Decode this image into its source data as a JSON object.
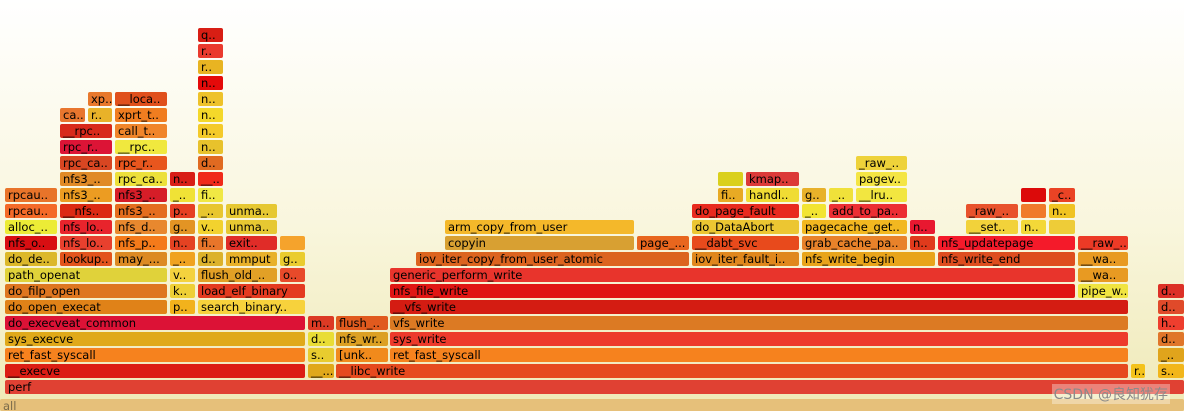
{
  "watermark": "CSDN @良知犹存",
  "chart_data": {
    "type": "flame_graph",
    "frames": [
      {
        "label": "all",
        "depth": 0,
        "start": 0,
        "end": 1184,
        "color": "#e6c07a"
      },
      {
        "label": "perf",
        "depth": 1,
        "start": 5,
        "end": 1184,
        "color": "#e04133"
      },
      {
        "label": "__execve",
        "depth": 2,
        "start": 5,
        "end": 305,
        "color": "#dc1d14"
      },
      {
        "label": "__...",
        "depth": 2,
        "start": 308,
        "end": 334,
        "color": "#e0a81a"
      },
      {
        "label": "__libc_write",
        "depth": 2,
        "start": 336,
        "end": 1128,
        "color": "#e64a1e"
      },
      {
        "label": "r..",
        "depth": 2,
        "start": 1131,
        "end": 1145,
        "color": "#f4c21a"
      },
      {
        "label": "s..",
        "depth": 2,
        "start": 1158,
        "end": 1184,
        "color": "#f2b61b"
      },
      {
        "label": "ret_fast_syscall",
        "depth": 3,
        "start": 5,
        "end": 305,
        "color": "#f6821e"
      },
      {
        "label": "s..",
        "depth": 3,
        "start": 308,
        "end": 334,
        "color": "#e8cc2f"
      },
      {
        "label": "[unk..",
        "depth": 3,
        "start": 336,
        "end": 388,
        "color": "#f18a1c"
      },
      {
        "label": "ret_fast_syscall",
        "depth": 3,
        "start": 390,
        "end": 1128,
        "color": "#f6821e"
      },
      {
        "label": "_..",
        "depth": 3,
        "start": 1158,
        "end": 1184,
        "color": "#e0a41c"
      },
      {
        "label": "sys_execve",
        "depth": 4,
        "start": 5,
        "end": 305,
        "color": "#e0a919"
      },
      {
        "label": "d..",
        "depth": 4,
        "start": 308,
        "end": 334,
        "color": "#e9dd35"
      },
      {
        "label": "nfs_wr..",
        "depth": 4,
        "start": 336,
        "end": 388,
        "color": "#dca023"
      },
      {
        "label": "sys_write",
        "depth": 4,
        "start": 390,
        "end": 1128,
        "color": "#ed3a2b"
      },
      {
        "label": "d..",
        "depth": 4,
        "start": 1158,
        "end": 1184,
        "color": "#e0762a"
      },
      {
        "label": "do_execveat_common",
        "depth": 5,
        "start": 5,
        "end": 305,
        "color": "#dc1236"
      },
      {
        "label": "m..",
        "depth": 5,
        "start": 308,
        "end": 334,
        "color": "#dc3a24"
      },
      {
        "label": "flush_..",
        "depth": 5,
        "start": 336,
        "end": 388,
        "color": "#e05a1e"
      },
      {
        "label": "vfs_write",
        "depth": 5,
        "start": 390,
        "end": 1128,
        "color": "#dc7a23"
      },
      {
        "label": "h..",
        "depth": 5,
        "start": 1158,
        "end": 1184,
        "color": "#ee3e2e"
      },
      {
        "label": "do_open_execat",
        "depth": 6,
        "start": 5,
        "end": 167,
        "color": "#e08218"
      },
      {
        "label": "p..",
        "depth": 6,
        "start": 170,
        "end": 195,
        "color": "#f2b21c"
      },
      {
        "label": "search_binary..",
        "depth": 6,
        "start": 198,
        "end": 305,
        "color": "#f7d23c"
      },
      {
        "label": "__vfs_write",
        "depth": 6,
        "start": 390,
        "end": 1128,
        "color": "#d41c12"
      },
      {
        "label": "d..",
        "depth": 6,
        "start": 1158,
        "end": 1184,
        "color": "#e04a2a"
      },
      {
        "label": "do_filp_open",
        "depth": 7,
        "start": 5,
        "end": 167,
        "color": "#de7620"
      },
      {
        "label": "k..",
        "depth": 7,
        "start": 170,
        "end": 195,
        "color": "#eecf36"
      },
      {
        "label": "load_elf_binary",
        "depth": 7,
        "start": 198,
        "end": 305,
        "color": "#e43a20"
      },
      {
        "label": "nfs_file_write",
        "depth": 7,
        "start": 390,
        "end": 1075,
        "color": "#e01613"
      },
      {
        "label": "pipe_w..",
        "depth": 7,
        "start": 1078,
        "end": 1128,
        "color": "#f0e440"
      },
      {
        "label": "d..",
        "depth": 7,
        "start": 1158,
        "end": 1184,
        "color": "#dc3026"
      },
      {
        "label": "path_openat",
        "depth": 8,
        "start": 5,
        "end": 167,
        "color": "#e0d23a"
      },
      {
        "label": "v..",
        "depth": 8,
        "start": 170,
        "end": 195,
        "color": "#f4d23e"
      },
      {
        "label": "flush_old_..",
        "depth": 8,
        "start": 198,
        "end": 277,
        "color": "#e2a026"
      },
      {
        "label": "o..",
        "depth": 8,
        "start": 280,
        "end": 305,
        "color": "#e84a2a"
      },
      {
        "label": "generic_perform_write",
        "depth": 8,
        "start": 390,
        "end": 1075,
        "color": "#e8342c"
      },
      {
        "label": "__wa..",
        "depth": 8,
        "start": 1078,
        "end": 1128,
        "color": "#e89a22"
      },
      {
        "label": "do_de..",
        "depth": 9,
        "start": 5,
        "end": 57,
        "color": "#dcb82a"
      },
      {
        "label": "lookup..",
        "depth": 9,
        "start": 60,
        "end": 112,
        "color": "#e3541c"
      },
      {
        "label": "may_...",
        "depth": 9,
        "start": 115,
        "end": 167,
        "color": "#dc8a23"
      },
      {
        "label": "_..",
        "depth": 9,
        "start": 170,
        "end": 195,
        "color": "#f0a220"
      },
      {
        "label": "d..",
        "depth": 9,
        "start": 198,
        "end": 223,
        "color": "#dcb22b"
      },
      {
        "label": "mmput",
        "depth": 9,
        "start": 226,
        "end": 277,
        "color": "#e8b12a"
      },
      {
        "label": "g..",
        "depth": 9,
        "start": 280,
        "end": 305,
        "color": "#eacc2f"
      },
      {
        "label": "iov_iter_copy_from_user_atomic",
        "depth": 9,
        "start": 416,
        "end": 689,
        "color": "#dc641f"
      },
      {
        "label": "iov_iter_fault_i..",
        "depth": 9,
        "start": 692,
        "end": 799,
        "color": "#e0871d"
      },
      {
        "label": "nfs_write_begin",
        "depth": 9,
        "start": 802,
        "end": 935,
        "color": "#e8a41a"
      },
      {
        "label": "nfs_write_end",
        "depth": 9,
        "start": 938,
        "end": 1075,
        "color": "#de4d1e"
      },
      {
        "label": "__wa..",
        "depth": 9,
        "start": 1078,
        "end": 1128,
        "color": "#e89a22"
      },
      {
        "label": "nfs_o..",
        "depth": 10,
        "start": 5,
        "end": 57,
        "color": "#d80e12"
      },
      {
        "label": "nfs_lo..",
        "depth": 10,
        "start": 60,
        "end": 112,
        "color": "#e8402e"
      },
      {
        "label": "nfs_p..",
        "depth": 10,
        "start": 115,
        "end": 167,
        "color": "#f47a1a"
      },
      {
        "label": "n..",
        "depth": 10,
        "start": 170,
        "end": 195,
        "color": "#e44222"
      },
      {
        "label": "fi..",
        "depth": 10,
        "start": 198,
        "end": 223,
        "color": "#e8752a"
      },
      {
        "label": "exit..",
        "depth": 10,
        "start": 226,
        "end": 277,
        "color": "#e02c28"
      },
      {
        "label": "",
        "depth": 10,
        "start": 280,
        "end": 305,
        "color": "#f5a32c"
      },
      {
        "label": "copyin",
        "depth": 10,
        "start": 445,
        "end": 634,
        "color": "#d8a032"
      },
      {
        "label": "page_...",
        "depth": 10,
        "start": 637,
        "end": 689,
        "color": "#e8661e"
      },
      {
        "label": "__dabt_svc",
        "depth": 10,
        "start": 692,
        "end": 799,
        "color": "#e84a1c"
      },
      {
        "label": "grab_cache_pa..",
        "depth": 10,
        "start": 802,
        "end": 907,
        "color": "#e8822a"
      },
      {
        "label": "n..",
        "depth": 10,
        "start": 910,
        "end": 935,
        "color": "#e03a1c"
      },
      {
        "label": "nfs_updatepage",
        "depth": 10,
        "start": 938,
        "end": 1075,
        "color": "#f41a2a"
      },
      {
        "label": "__raw_..",
        "depth": 10,
        "start": 1078,
        "end": 1128,
        "color": "#ec3a26"
      },
      {
        "label": "alloc_..",
        "depth": 11,
        "start": 5,
        "end": 57,
        "color": "#ecec36"
      },
      {
        "label": "nfs_lo..",
        "depth": 11,
        "start": 60,
        "end": 112,
        "color": "#e8242c"
      },
      {
        "label": "nfs_d..",
        "depth": 11,
        "start": 115,
        "end": 167,
        "color": "#e8882e"
      },
      {
        "label": "g..",
        "depth": 11,
        "start": 170,
        "end": 195,
        "color": "#e39424"
      },
      {
        "label": "v..",
        "depth": 11,
        "start": 198,
        "end": 223,
        "color": "#f2d22e"
      },
      {
        "label": "unma..",
        "depth": 11,
        "start": 226,
        "end": 277,
        "color": "#e6c832"
      },
      {
        "label": "arm_copy_from_user",
        "depth": 11,
        "start": 445,
        "end": 634,
        "color": "#f4b82a"
      },
      {
        "label": "do_DataAbort",
        "depth": 11,
        "start": 692,
        "end": 799,
        "color": "#ecc632"
      },
      {
        "label": "pagecache_get..",
        "depth": 11,
        "start": 802,
        "end": 907,
        "color": "#f2b820"
      },
      {
        "label": "n..",
        "depth": 11,
        "start": 910,
        "end": 935,
        "color": "#e81830"
      },
      {
        "label": "__set..",
        "depth": 11,
        "start": 966,
        "end": 1018,
        "color": "#f2d23a"
      },
      {
        "label": "n..",
        "depth": 11,
        "start": 1021,
        "end": 1046,
        "color": "#f3d838"
      },
      {
        "label": "",
        "depth": 11,
        "start": 1049,
        "end": 1075,
        "color": "#eecc38"
      },
      {
        "label": "rpcau..",
        "depth": 12,
        "start": 5,
        "end": 57,
        "color": "#f46a28"
      },
      {
        "label": "__nfs..",
        "depth": 12,
        "start": 60,
        "end": 112,
        "color": "#dc2a12"
      },
      {
        "label": "nfs3_..",
        "depth": 12,
        "start": 115,
        "end": 167,
        "color": "#e46d1e"
      },
      {
        "label": "p..",
        "depth": 12,
        "start": 170,
        "end": 195,
        "color": "#e63f23"
      },
      {
        "label": "_..",
        "depth": 12,
        "start": 198,
        "end": 223,
        "color": "#e8c630"
      },
      {
        "label": "unma..",
        "depth": 12,
        "start": 226,
        "end": 277,
        "color": "#e6c832"
      },
      {
        "label": "do_page_fault",
        "depth": 12,
        "start": 692,
        "end": 799,
        "color": "#e82a1e"
      },
      {
        "label": "_..",
        "depth": 12,
        "start": 802,
        "end": 826,
        "color": "#f2e432"
      },
      {
        "label": "add_to_pa..",
        "depth": 12,
        "start": 829,
        "end": 907,
        "color": "#ec2e33"
      },
      {
        "label": "_raw_..",
        "depth": 12,
        "start": 966,
        "end": 1018,
        "color": "#e8522c"
      },
      {
        "label": "",
        "depth": 12,
        "start": 1021,
        "end": 1046,
        "color": "#f07a2a"
      },
      {
        "label": "n..",
        "depth": 12,
        "start": 1049,
        "end": 1075,
        "color": "#f0c322"
      },
      {
        "label": "rpcau..",
        "depth": 13,
        "start": 5,
        "end": 57,
        "color": "#e8742a"
      },
      {
        "label": "nfs3_..",
        "depth": 13,
        "start": 60,
        "end": 112,
        "color": "#ec9c22"
      },
      {
        "label": "nfs3_..",
        "depth": 13,
        "start": 115,
        "end": 167,
        "color": "#d61d28"
      },
      {
        "label": "_..",
        "depth": 13,
        "start": 170,
        "end": 195,
        "color": "#f0e236"
      },
      {
        "label": "fi..",
        "depth": 13,
        "start": 198,
        "end": 223,
        "color": "#f0e844"
      },
      {
        "label": "fi..",
        "depth": 13,
        "start": 718,
        "end": 743,
        "color": "#e8aa24"
      },
      {
        "label": "handl..",
        "depth": 13,
        "start": 746,
        "end": 799,
        "color": "#f0dc34"
      },
      {
        "label": "g..",
        "depth": 13,
        "start": 802,
        "end": 826,
        "color": "#e8b12a"
      },
      {
        "label": "_..",
        "depth": 13,
        "start": 829,
        "end": 853,
        "color": "#f0e13a"
      },
      {
        "label": "__lru..",
        "depth": 13,
        "start": 856,
        "end": 907,
        "color": "#f2e640"
      },
      {
        "label": "",
        "depth": 13,
        "start": 1021,
        "end": 1046,
        "color": "#dc0a0a"
      },
      {
        "label": "_c..",
        "depth": 13,
        "start": 1049,
        "end": 1075,
        "color": "#ea4325"
      },
      {
        "label": "nfs3_..",
        "depth": 14,
        "start": 60,
        "end": 112,
        "color": "#e08a26"
      },
      {
        "label": "rpc_ca..",
        "depth": 14,
        "start": 115,
        "end": 167,
        "color": "#ece03a"
      },
      {
        "label": "n..",
        "depth": 14,
        "start": 170,
        "end": 195,
        "color": "#d81e16"
      },
      {
        "label": "__..",
        "depth": 14,
        "start": 198,
        "end": 223,
        "color": "#f02a1a"
      },
      {
        "label": "",
        "depth": 14,
        "start": 718,
        "end": 743,
        "color": "#dad01c"
      },
      {
        "label": "kmap..",
        "depth": 14,
        "start": 746,
        "end": 799,
        "color": "#dc3a38"
      },
      {
        "label": "pagev..",
        "depth": 14,
        "start": 856,
        "end": 907,
        "color": "#f4e544"
      },
      {
        "label": "rpc_ca..",
        "depth": 15,
        "start": 60,
        "end": 112,
        "color": "#d84622"
      },
      {
        "label": "rpc_r..",
        "depth": 15,
        "start": 115,
        "end": 167,
        "color": "#e8561e"
      },
      {
        "label": "d..",
        "depth": 15,
        "start": 198,
        "end": 223,
        "color": "#e06a21"
      },
      {
        "label": "_raw_..",
        "depth": 15,
        "start": 856,
        "end": 907,
        "color": "#eed23a"
      },
      {
        "label": "rpc_r..",
        "depth": 16,
        "start": 60,
        "end": 112,
        "color": "#dc1436"
      },
      {
        "label": "__rpc..",
        "depth": 16,
        "start": 115,
        "end": 167,
        "color": "#f0e83e"
      },
      {
        "label": "n..",
        "depth": 16,
        "start": 198,
        "end": 223,
        "color": "#e8c22c"
      },
      {
        "label": "__rpc..",
        "depth": 17,
        "start": 60,
        "end": 112,
        "color": "#d82a1a"
      },
      {
        "label": "call_t..",
        "depth": 17,
        "start": 115,
        "end": 167,
        "color": "#f0852a"
      },
      {
        "label": "n..",
        "depth": 17,
        "start": 198,
        "end": 223,
        "color": "#f4ca2a"
      },
      {
        "label": "ca..",
        "depth": 18,
        "start": 60,
        "end": 85,
        "color": "#e8762e"
      },
      {
        "label": "r..",
        "depth": 18,
        "start": 88,
        "end": 112,
        "color": "#e8b229"
      },
      {
        "label": "xprt_t..",
        "depth": 18,
        "start": 115,
        "end": 167,
        "color": "#f07d20"
      },
      {
        "label": "n..",
        "depth": 18,
        "start": 198,
        "end": 223,
        "color": "#f4d82a"
      },
      {
        "label": "xp..",
        "depth": 19,
        "start": 88,
        "end": 112,
        "color": "#e8782c"
      },
      {
        "label": "__loca..",
        "depth": 19,
        "start": 115,
        "end": 167,
        "color": "#e0501c"
      },
      {
        "label": "n..",
        "depth": 19,
        "start": 198,
        "end": 223,
        "color": "#eec22a"
      },
      {
        "label": "n..",
        "depth": 20,
        "start": 198,
        "end": 223,
        "color": "#e40a0a"
      },
      {
        "label": "r..",
        "depth": 21,
        "start": 198,
        "end": 223,
        "color": "#e8b422"
      },
      {
        "label": "r..",
        "depth": 22,
        "start": 198,
        "end": 223,
        "color": "#ea3a2e"
      },
      {
        "label": "q..",
        "depth": 23,
        "start": 198,
        "end": 223,
        "color": "#d81e14"
      }
    ]
  }
}
